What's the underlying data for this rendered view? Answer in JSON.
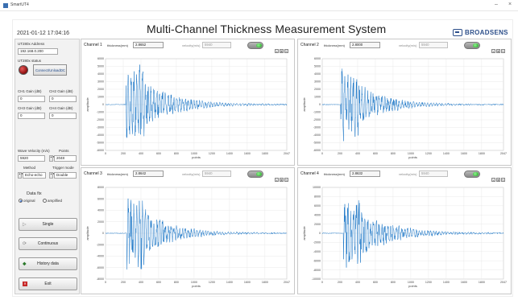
{
  "window": {
    "app_name": "SmartUT4",
    "minimize": "–",
    "close": "×"
  },
  "header": {
    "timestamp": "2021-01-12 17:04:16",
    "title": "Multi-Channel  Thickness Measurement System",
    "logo": "BROADSENS"
  },
  "left_panel": {
    "ip_label": "UT280x Address",
    "ip_value": "192.168.0.200",
    "status_label": "UT280x status",
    "connect_label": "Connect/UnloadDC",
    "gain": [
      {
        "label": "CH1 Gain  (dB)",
        "value": "0"
      },
      {
        "label": "CH2 Gain  (dB)",
        "value": "0"
      },
      {
        "label": "CH3 Gain  (dB)",
        "value": "0"
      },
      {
        "label": "CH4 Gain  (dB)",
        "value": "0"
      }
    ],
    "wave_velocity_label": "Wave Velocity (m/s)",
    "wave_velocity_value": "5920",
    "points_label": "Points",
    "points_value": "2048",
    "method_label": "Method",
    "method_value": "Echo-echo",
    "trigger_label": "Trigger mode",
    "trigger_value": "Double",
    "data_fix_label": "Data fix",
    "radio_original": "original",
    "radio_amplified": "amplified",
    "btn_single": "Single",
    "btn_continuous": "Continuous",
    "btn_history": "History data",
    "btn_exit": "Exit"
  },
  "channels": [
    {
      "label": "Channel 1",
      "thickness_label": "thickness(mm)",
      "thickness_value": "2.8652",
      "velocity_label": "velocity(m/s)",
      "velocity_value": "5940"
    },
    {
      "label": "Channel 2",
      "thickness_label": "thickness(mm)",
      "thickness_value": "2.8000",
      "velocity_label": "velocity(m/s)",
      "velocity_value": "5940"
    },
    {
      "label": "Channel 3",
      "thickness_label": "thickness(mm)",
      "thickness_value": "2.8642",
      "velocity_label": "velocity(m/s)",
      "velocity_value": "5940"
    },
    {
      "label": "Channel 4",
      "thickness_label": "thickness(mm)",
      "thickness_value": "2.8632",
      "velocity_label": "velocity(m/s)",
      "velocity_value": "5940"
    }
  ],
  "chart_data": [
    {
      "type": "line",
      "xlabel": "points",
      "ylabel": "amplitude",
      "xlim": [
        0,
        2047
      ],
      "ylim": [
        -6000,
        6000
      ],
      "xticks": [
        0,
        200,
        400,
        600,
        800,
        1000,
        1200,
        1400,
        1600,
        1800,
        2047
      ],
      "yticks": [
        -6000,
        -5000,
        -4000,
        -3000,
        -2000,
        -1000,
        0,
        1000,
        2000,
        3000,
        4000,
        5000,
        6000
      ],
      "signal": {
        "onset": 230,
        "peak": 5800,
        "decay": 360
      }
    },
    {
      "type": "line",
      "xlabel": "points",
      "ylabel": "amplitude",
      "xlim": [
        0,
        2047
      ],
      "ylim": [
        -6000,
        6000
      ],
      "xticks": [
        0,
        200,
        400,
        600,
        800,
        1000,
        1200,
        1400,
        1600,
        1800,
        2047
      ],
      "yticks": [
        -6000,
        -5000,
        -4000,
        -3000,
        -2000,
        -1000,
        0,
        1000,
        2000,
        3000,
        4000,
        5000,
        6000
      ],
      "signal": {
        "onset": 210,
        "peak": 5200,
        "decay": 330
      }
    },
    {
      "type": "line",
      "xlabel": "points",
      "ylabel": "amplitude",
      "xlim": [
        0,
        2047
      ],
      "ylim": [
        -8000,
        8000
      ],
      "xticks": [
        0,
        200,
        400,
        600,
        800,
        1000,
        1200,
        1400,
        1600,
        1800,
        2047
      ],
      "yticks": [
        -8000,
        -6000,
        -4000,
        -2000,
        0,
        2000,
        4000,
        6000,
        8000
      ],
      "signal": {
        "onset": 240,
        "peak": 7400,
        "decay": 340
      }
    },
    {
      "type": "line",
      "xlabel": "points",
      "ylabel": "amplitude",
      "xlim": [
        0,
        2047
      ],
      "ylim": [
        -10000,
        10000
      ],
      "xticks": [
        0,
        200,
        400,
        600,
        800,
        1000,
        1200,
        1400,
        1600,
        1800,
        2047
      ],
      "yticks": [
        -10000,
        -8000,
        -6000,
        -4000,
        -2000,
        0,
        2000,
        4000,
        6000,
        8000,
        10000
      ],
      "signal": {
        "onset": 240,
        "peak": 8600,
        "decay": 380
      }
    }
  ]
}
